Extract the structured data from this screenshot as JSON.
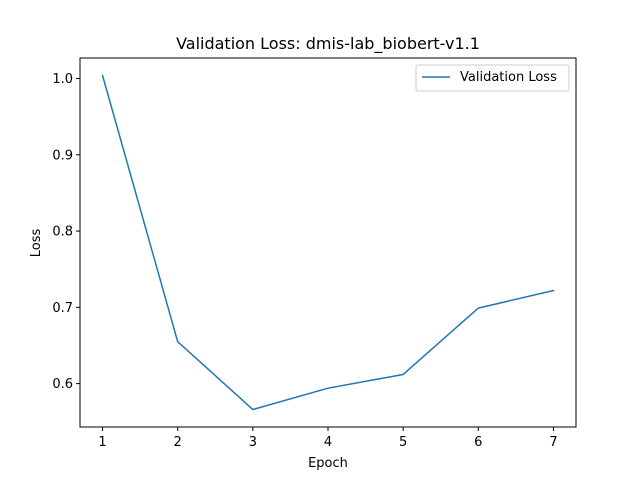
{
  "chart_data": {
    "type": "line",
    "title": "Validation Loss: dmis-lab_biobert-v1.1",
    "xlabel": "Epoch",
    "ylabel": "Loss",
    "x": [
      1,
      2,
      3,
      4,
      5,
      6,
      7
    ],
    "series": [
      {
        "name": "Validation Loss",
        "color": "#1f77b4",
        "values": [
          1.004,
          0.655,
          0.566,
          0.594,
          0.612,
          0.699,
          0.722
        ]
      }
    ],
    "xlim": [
      0.7,
      7.3
    ],
    "ylim": [
      0.5431,
      1.0269
    ],
    "xticks": [
      1,
      2,
      3,
      4,
      5,
      6,
      7
    ],
    "yticks": [
      0.6,
      0.7,
      0.8,
      0.9,
      1.0
    ],
    "ytick_labels": [
      "0.6",
      "0.7",
      "0.8",
      "0.9",
      "1.0"
    ],
    "grid": false,
    "legend_position": "top-right"
  }
}
